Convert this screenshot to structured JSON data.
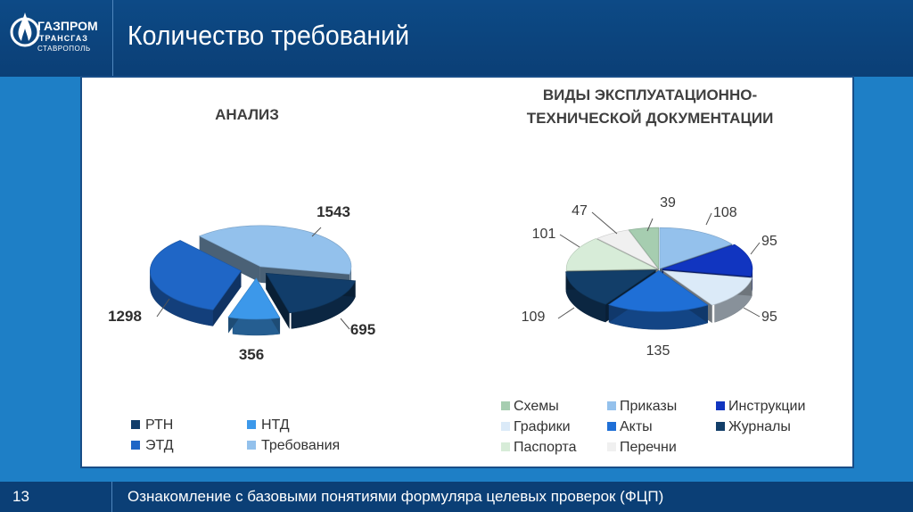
{
  "header": {
    "title": "Количество требований",
    "logo": {
      "line1": "ГАЗПРОМ",
      "line2": "ТРАНСГАЗ",
      "line3": "СТАВРОПОЛЬ",
      "icon": "gazprom-flame-icon"
    }
  },
  "footer": {
    "slide_number": "13",
    "text": "Ознакомление с базовыми понятиями формуляра целевых проверок (ФЦП)"
  },
  "chart_data": [
    {
      "type": "pie",
      "title": "АНАЛИЗ",
      "legend_position": "bottom",
      "slices": [
        {
          "label": "Требования",
          "value": 1543,
          "color": "#93c1ec"
        },
        {
          "label": "РТН",
          "value": 695,
          "color": "#113d6a"
        },
        {
          "label": "НТД",
          "value": 356,
          "color": "#3c98ea"
        },
        {
          "label": "ЭТД",
          "value": 1298,
          "color": "#1f66c6"
        }
      ],
      "legend": [
        {
          "label": "РТН",
          "color": "#113d6a"
        },
        {
          "label": "НТД",
          "color": "#3c98ea"
        },
        {
          "label": "ЭТД",
          "color": "#1f66c6"
        },
        {
          "label": "Требования",
          "color": "#93c1ec"
        }
      ]
    },
    {
      "type": "pie",
      "title": "ВИДЫ ЭКСПЛУАТАЦИОННО-\nТЕХНИЧЕСКОЙ ДОКУМЕНТАЦИИ",
      "legend_position": "bottom",
      "slices": [
        {
          "label": "Приказы",
          "value": 108,
          "color": "#94c1ec"
        },
        {
          "label": "Инструкции",
          "value": 95,
          "color": "#1135c0"
        },
        {
          "label": "Графики",
          "value": 95,
          "color": "#dbeaf8"
        },
        {
          "label": "Акты",
          "value": 135,
          "color": "#1f6fd6"
        },
        {
          "label": "Журналы",
          "value": 109,
          "color": "#123e69"
        },
        {
          "label": "Паспорта",
          "value": 101,
          "color": "#d7ecd8"
        },
        {
          "label": "Перечни",
          "value": 47,
          "color": "#f0f0f0"
        },
        {
          "label": "Схемы",
          "value": 39,
          "color": "#a6cdb0"
        }
      ],
      "legend": [
        {
          "label": "Схемы",
          "color": "#a6cdb0"
        },
        {
          "label": "Приказы",
          "color": "#94c1ec"
        },
        {
          "label": "Инструкции",
          "color": "#1135c0"
        },
        {
          "label": "Графики",
          "color": "#dbeaf8"
        },
        {
          "label": "Акты",
          "color": "#1f6fd6"
        },
        {
          "label": "Журналы",
          "color": "#123e69"
        },
        {
          "label": "Паспорта",
          "color": "#d7ecd8"
        },
        {
          "label": "Перечни",
          "color": "#f0f0f0"
        }
      ]
    }
  ]
}
